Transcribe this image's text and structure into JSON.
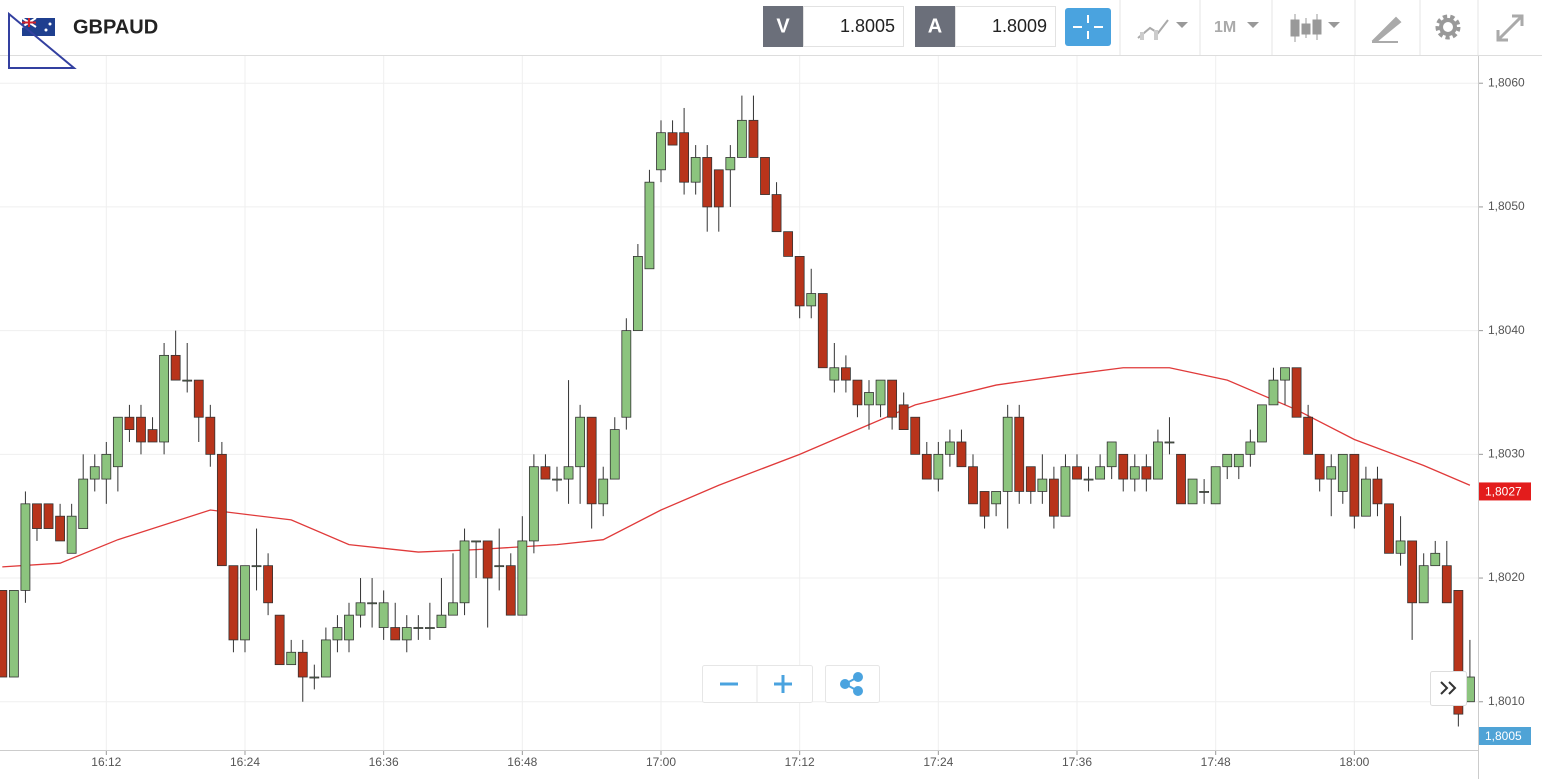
{
  "header": {
    "symbol": "GBPAUD",
    "bid_label": "V",
    "bid": 1.8005,
    "ask_label": "A",
    "ask": 1.8009,
    "timeframe": "1M"
  },
  "chart_data": {
    "type": "candlestick",
    "xlim": [
      962.8,
      1090.7
    ],
    "ylim": [
      1.80061,
      1.80622
    ],
    "xticks": [
      {
        "value": 972,
        "label": "16:12"
      },
      {
        "value": 984,
        "label": "16:24"
      },
      {
        "value": 996,
        "label": "16:36"
      },
      {
        "value": 1008,
        "label": "16:48"
      },
      {
        "value": 1020,
        "label": "17:00"
      },
      {
        "value": 1032,
        "label": "17:12"
      },
      {
        "value": 1044,
        "label": "17:24"
      },
      {
        "value": 1056,
        "label": "17:36"
      },
      {
        "value": 1068,
        "label": "17:48"
      },
      {
        "value": 1080,
        "label": "18:00"
      }
    ],
    "yticks": [
      {
        "value": 1.806,
        "label": "1,8060"
      },
      {
        "value": 1.805,
        "label": "1,8050"
      },
      {
        "value": 1.804,
        "label": "1,8040"
      },
      {
        "value": 1.803,
        "label": "1,8030"
      },
      {
        "value": 1.802,
        "label": "1,8020"
      },
      {
        "value": 1.801,
        "label": "1,8010"
      }
    ],
    "grid": true,
    "up_color": "#8cc47e",
    "down_color": "#b8341b",
    "x": [
      963,
      964,
      965,
      966,
      967,
      968,
      969,
      970,
      971,
      972,
      973,
      974,
      975,
      976,
      977,
      978,
      979,
      980,
      981,
      982,
      983,
      984,
      985,
      986,
      987,
      988,
      989,
      990,
      991,
      992,
      993,
      994,
      995,
      996,
      997,
      998,
      999,
      1000,
      1001,
      1002,
      1003,
      1004,
      1005,
      1006,
      1007,
      1008,
      1009,
      1010,
      1011,
      1012,
      1013,
      1014,
      1015,
      1016,
      1017,
      1018,
      1019,
      1020,
      1021,
      1022,
      1023,
      1024,
      1025,
      1026,
      1027,
      1028,
      1029,
      1030,
      1031,
      1032,
      1033,
      1034,
      1035,
      1036,
      1037,
      1038,
      1039,
      1040,
      1041,
      1042,
      1043,
      1044,
      1045,
      1046,
      1047,
      1048,
      1049,
      1050,
      1051,
      1052,
      1053,
      1054,
      1055,
      1056,
      1057,
      1058,
      1059,
      1060,
      1061,
      1062,
      1063,
      1064,
      1065,
      1066,
      1067,
      1068,
      1069,
      1070,
      1071,
      1072,
      1073,
      1074,
      1075,
      1076,
      1077,
      1078,
      1079,
      1080,
      1081,
      1082,
      1083,
      1084,
      1085,
      1086,
      1087,
      1088,
      1089,
      1090
    ],
    "ohlc": [
      [
        1.8019,
        1.8019,
        1.8012,
        1.8012
      ],
      [
        1.8012,
        1.8019,
        1.8012,
        1.8019
      ],
      [
        1.8019,
        1.8027,
        1.8018,
        1.8026
      ],
      [
        1.8026,
        1.8026,
        1.8023,
        1.8024
      ],
      [
        1.8026,
        1.8026,
        1.8024,
        1.8024
      ],
      [
        1.8025,
        1.8026,
        1.8023,
        1.8023
      ],
      [
        1.8022,
        1.8026,
        1.8022,
        1.8025
      ],
      [
        1.8024,
        1.803,
        1.8024,
        1.8028
      ],
      [
        1.8028,
        1.803,
        1.8027,
        1.8029
      ],
      [
        1.8028,
        1.8031,
        1.8026,
        1.803
      ],
      [
        1.8029,
        1.8033,
        1.8027,
        1.8033
      ],
      [
        1.8033,
        1.8034,
        1.8031,
        1.8032
      ],
      [
        1.8033,
        1.8034,
        1.803,
        1.8031
      ],
      [
        1.8032,
        1.8033,
        1.8031,
        1.8031
      ],
      [
        1.8031,
        1.8039,
        1.803,
        1.8038
      ],
      [
        1.8038,
        1.804,
        1.8036,
        1.8036
      ],
      [
        1.8036,
        1.8039,
        1.8035,
        1.8036
      ],
      [
        1.8036,
        1.8036,
        1.8031,
        1.8033
      ],
      [
        1.8033,
        1.8034,
        1.8029,
        1.803
      ],
      [
        1.803,
        1.8031,
        1.8021,
        1.8021
      ],
      [
        1.8021,
        1.8021,
        1.8014,
        1.8015
      ],
      [
        1.8015,
        1.8021,
        1.8014,
        1.8021
      ],
      [
        1.8021,
        1.8024,
        1.8019,
        1.8021
      ],
      [
        1.8021,
        1.8022,
        1.8017,
        1.8018
      ],
      [
        1.8017,
        1.8017,
        1.8013,
        1.8013
      ],
      [
        1.8013,
        1.8015,
        1.8013,
        1.8014
      ],
      [
        1.8014,
        1.8015,
        1.801,
        1.8012
      ],
      [
        1.8012,
        1.8013,
        1.8011,
        1.8012
      ],
      [
        1.8012,
        1.8016,
        1.8012,
        1.8015
      ],
      [
        1.8015,
        1.8017,
        1.8014,
        1.8016
      ],
      [
        1.8015,
        1.8018,
        1.8014,
        1.8017
      ],
      [
        1.8017,
        1.802,
        1.8016,
        1.8018
      ],
      [
        1.8018,
        1.802,
        1.8016,
        1.8018
      ],
      [
        1.8016,
        1.8019,
        1.8015,
        1.8018
      ],
      [
        1.8016,
        1.8018,
        1.8015,
        1.8015
      ],
      [
        1.8015,
        1.8017,
        1.8014,
        1.8016
      ],
      [
        1.8016,
        1.8017,
        1.8015,
        1.8016
      ],
      [
        1.8016,
        1.8018,
        1.8015,
        1.8016
      ],
      [
        1.8016,
        1.802,
        1.8016,
        1.8017
      ],
      [
        1.8017,
        1.8022,
        1.8017,
        1.8018
      ],
      [
        1.8018,
        1.8024,
        1.8017,
        1.8023
      ],
      [
        1.8023,
        1.8023,
        1.802,
        1.8023
      ],
      [
        1.8023,
        1.8023,
        1.8016,
        1.802
      ],
      [
        1.8021,
        1.8024,
        1.8019,
        1.8021
      ],
      [
        1.8021,
        1.8022,
        1.8017,
        1.8017
      ],
      [
        1.8017,
        1.8025,
        1.8017,
        1.8023
      ],
      [
        1.8023,
        1.803,
        1.8022,
        1.8029
      ],
      [
        1.8029,
        1.803,
        1.8028,
        1.8028
      ],
      [
        1.8028,
        1.8029,
        1.8027,
        1.8028
      ],
      [
        1.8028,
        1.8036,
        1.8026,
        1.8029
      ],
      [
        1.8029,
        1.8034,
        1.8026,
        1.8033
      ],
      [
        1.8033,
        1.8033,
        1.8024,
        1.8026
      ],
      [
        1.8026,
        1.8029,
        1.8025,
        1.8028
      ],
      [
        1.8028,
        1.8033,
        1.8028,
        1.8032
      ],
      [
        1.8033,
        1.8041,
        1.8032,
        1.804
      ],
      [
        1.804,
        1.8047,
        1.804,
        1.8046
      ],
      [
        1.8045,
        1.8053,
        1.8045,
        1.8052
      ],
      [
        1.8053,
        1.8057,
        1.8052,
        1.8056
      ],
      [
        1.8056,
        1.8057,
        1.8055,
        1.8055
      ],
      [
        1.8056,
        1.8058,
        1.8051,
        1.8052
      ],
      [
        1.8052,
        1.8055,
        1.8051,
        1.8054
      ],
      [
        1.8054,
        1.8055,
        1.8048,
        1.805
      ],
      [
        1.8053,
        1.8053,
        1.8048,
        1.805
      ],
      [
        1.8053,
        1.8055,
        1.805,
        1.8054
      ],
      [
        1.8054,
        1.8059,
        1.8054,
        1.8057
      ],
      [
        1.8057,
        1.8059,
        1.8054,
        1.8054
      ],
      [
        1.8054,
        1.8054,
        1.8051,
        1.8051
      ],
      [
        1.8051,
        1.8052,
        1.8048,
        1.8048
      ],
      [
        1.8048,
        1.8048,
        1.8046,
        1.8046
      ],
      [
        1.8046,
        1.8046,
        1.8041,
        1.8042
      ],
      [
        1.8042,
        1.8045,
        1.8041,
        1.8043
      ],
      [
        1.8043,
        1.8043,
        1.8037,
        1.8037
      ],
      [
        1.8036,
        1.8039,
        1.8035,
        1.8037
      ],
      [
        1.8037,
        1.8038,
        1.8035,
        1.8036
      ],
      [
        1.8036,
        1.8036,
        1.8033,
        1.8034
      ],
      [
        1.8034,
        1.8036,
        1.8032,
        1.8035
      ],
      [
        1.8034,
        1.8036,
        1.8033,
        1.8036
      ],
      [
        1.8036,
        1.8036,
        1.8032,
        1.8033
      ],
      [
        1.8034,
        1.8035,
        1.8032,
        1.8032
      ],
      [
        1.8033,
        1.8033,
        1.803,
        1.803
      ],
      [
        1.803,
        1.8031,
        1.8028,
        1.8028
      ],
      [
        1.8028,
        1.8031,
        1.8027,
        1.803
      ],
      [
        1.803,
        1.8032,
        1.8029,
        1.8031
      ],
      [
        1.8031,
        1.8032,
        1.8029,
        1.8029
      ],
      [
        1.8029,
        1.803,
        1.8026,
        1.8026
      ],
      [
        1.8027,
        1.8027,
        1.8024,
        1.8025
      ],
      [
        1.8026,
        1.8027,
        1.8025,
        1.8027
      ],
      [
        1.8027,
        1.8034,
        1.8024,
        1.8033
      ],
      [
        1.8033,
        1.8034,
        1.8026,
        1.8027
      ],
      [
        1.8029,
        1.8029,
        1.8026,
        1.8027
      ],
      [
        1.8027,
        1.803,
        1.8026,
        1.8028
      ],
      [
        1.8028,
        1.8029,
        1.8024,
        1.8025
      ],
      [
        1.8025,
        1.803,
        1.8025,
        1.8029
      ],
      [
        1.8029,
        1.803,
        1.8028,
        1.8028
      ],
      [
        1.8028,
        1.8029,
        1.8027,
        1.8028
      ],
      [
        1.8028,
        1.803,
        1.8028,
        1.8029
      ],
      [
        1.8029,
        1.8031,
        1.8028,
        1.8031
      ],
      [
        1.803,
        1.803,
        1.8027,
        1.8028
      ],
      [
        1.8028,
        1.803,
        1.8027,
        1.8029
      ],
      [
        1.8029,
        1.803,
        1.8027,
        1.8028
      ],
      [
        1.8028,
        1.8032,
        1.8028,
        1.8031
      ],
      [
        1.8031,
        1.8033,
        1.803,
        1.8031
      ],
      [
        1.803,
        1.803,
        1.8026,
        1.8026
      ],
      [
        1.8026,
        1.8028,
        1.8026,
        1.8028
      ],
      [
        1.8027,
        1.8028,
        1.8026,
        1.8027
      ],
      [
        1.8026,
        1.8029,
        1.8026,
        1.8029
      ],
      [
        1.8029,
        1.803,
        1.8028,
        1.803
      ],
      [
        1.8029,
        1.803,
        1.8028,
        1.803
      ],
      [
        1.803,
        1.8032,
        1.8029,
        1.8031
      ],
      [
        1.8031,
        1.8034,
        1.8031,
        1.8034
      ],
      [
        1.8034,
        1.8037,
        1.8034,
        1.8036
      ],
      [
        1.8036,
        1.8037,
        1.8034,
        1.8037
      ],
      [
        1.8037,
        1.8037,
        1.8033,
        1.8033
      ],
      [
        1.8033,
        1.8034,
        1.803,
        1.803
      ],
      [
        1.803,
        1.803,
        1.8027,
        1.8028
      ],
      [
        1.8028,
        1.803,
        1.8025,
        1.8029
      ],
      [
        1.8027,
        1.803,
        1.8026,
        1.803
      ],
      [
        1.803,
        1.803,
        1.8024,
        1.8025
      ],
      [
        1.8025,
        1.8029,
        1.8025,
        1.8028
      ],
      [
        1.8028,
        1.8029,
        1.8025,
        1.8026
      ],
      [
        1.8026,
        1.8026,
        1.8022,
        1.8022
      ],
      [
        1.8022,
        1.8025,
        1.8021,
        1.8023
      ],
      [
        1.8023,
        1.8023,
        1.8015,
        1.8018
      ],
      [
        1.8018,
        1.8022,
        1.8018,
        1.8021
      ],
      [
        1.8021,
        1.8023,
        1.8021,
        1.8022
      ],
      [
        1.8021,
        1.8023,
        1.8018,
        1.8018
      ],
      [
        1.8019,
        1.8019,
        1.8008,
        1.8009
      ],
      [
        1.801,
        1.8015,
        1.801,
        1.8012
      ]
    ],
    "ma": {
      "color": "#e03a3a",
      "x": [
        963,
        968,
        973,
        981,
        988,
        993,
        999,
        1004,
        1011,
        1015,
        1020,
        1025,
        1032,
        1037,
        1042,
        1049,
        1055,
        1060,
        1064,
        1069,
        1075,
        1080,
        1086,
        1090
      ],
      "values": [
        1.80209,
        1.80212,
        1.80231,
        1.80255,
        1.80247,
        1.80227,
        1.80221,
        1.80223,
        1.80227,
        1.80231,
        1.80255,
        1.80275,
        1.803,
        1.8032,
        1.8034,
        1.80356,
        1.80364,
        1.8037,
        1.8037,
        1.8036,
        1.80336,
        1.80312,
        1.80291,
        1.80275
      ]
    },
    "price_markers": [
      {
        "value": 1.8027,
        "label": "1,8027",
        "color": "#e31c1c"
      },
      {
        "value": 1.8005,
        "label": "1,8005",
        "color": "#4fa3d6"
      }
    ]
  }
}
